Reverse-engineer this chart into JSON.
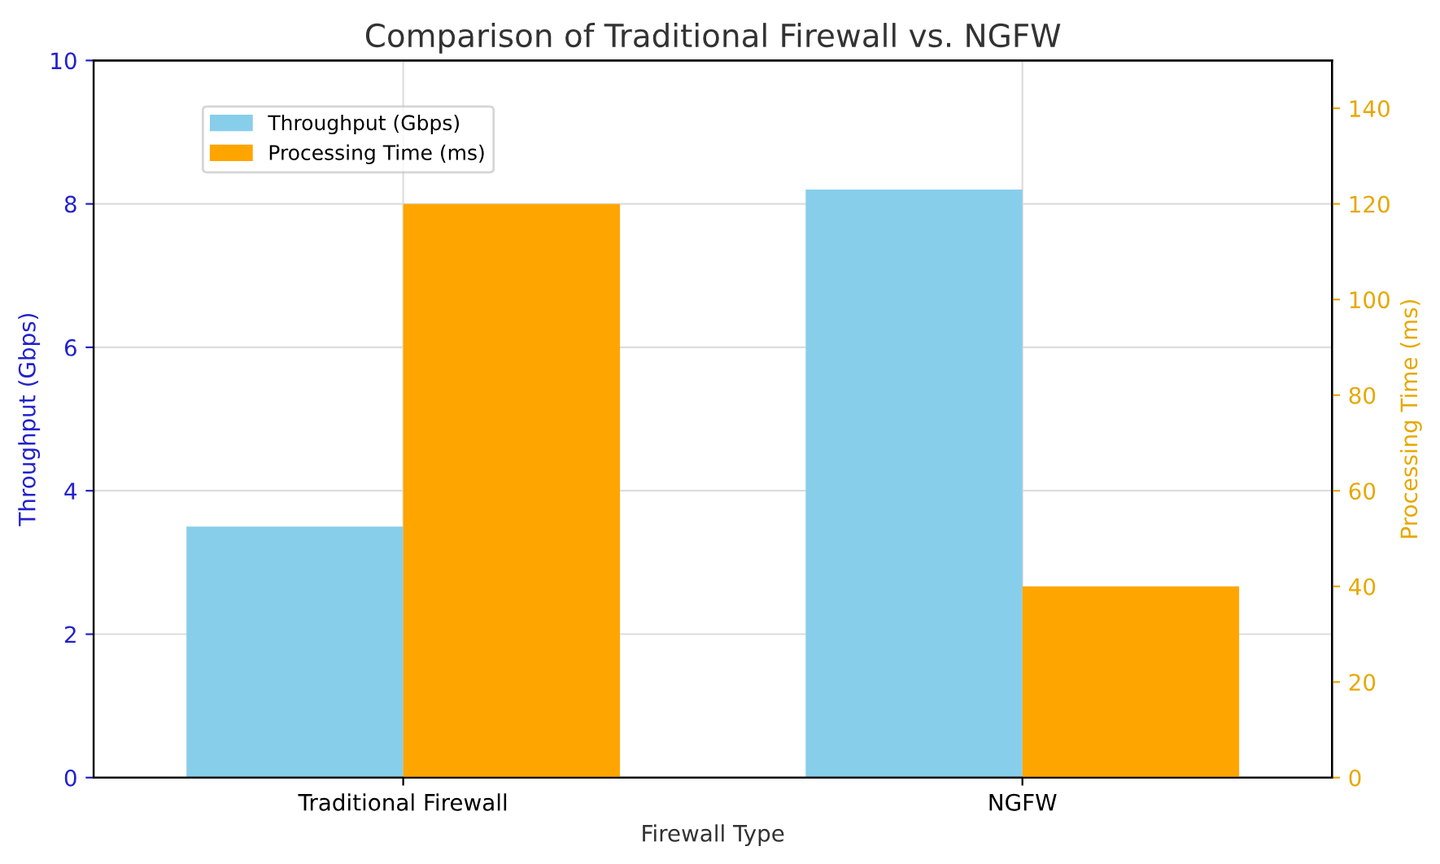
{
  "chart_data": {
    "type": "bar",
    "title": "Comparison of Traditional Firewall vs. NGFW",
    "xlabel": "Firewall Type",
    "ylabel": "Throughput (Gbps)",
    "y2label": "Processing Time (ms)",
    "categories": [
      "Traditional Firewall",
      "NGFW"
    ],
    "series": [
      {
        "name": "Throughput (Gbps)",
        "color": "#87ceeb",
        "values": [
          3.5,
          8.2
        ]
      },
      {
        "name": "Processing Time (ms)",
        "color": "#ffa500",
        "values": [
          120,
          40
        ],
        "axis": "y2"
      }
    ],
    "ylim": [
      0,
      10
    ],
    "yticks": [
      0,
      2,
      4,
      6,
      8,
      10
    ],
    "y2lim": [
      0,
      150
    ],
    "y2ticks": [
      0,
      20,
      40,
      60,
      80,
      100,
      120,
      140
    ],
    "grid": true,
    "legend": "top left"
  }
}
